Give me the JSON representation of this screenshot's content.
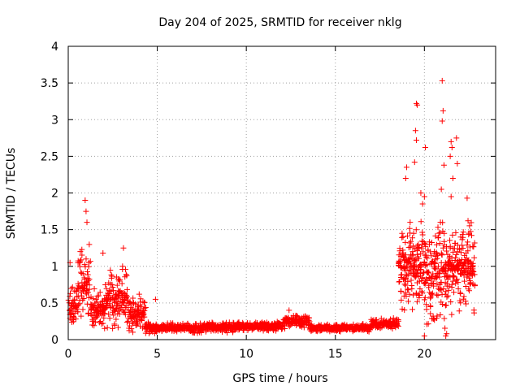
{
  "chart_data": {
    "type": "scatter",
    "title": "Day 204 of 2025, SRMTID for receiver nklg",
    "xlabel": "GPS time / hours",
    "ylabel": "SRMTID / TECUs",
    "xlim": [
      0,
      24
    ],
    "ylim": [
      0,
      4
    ],
    "grid": true,
    "xticks": [
      0,
      5,
      10,
      15,
      20
    ],
    "yticks": [
      0,
      0.5,
      1,
      1.5,
      2,
      2.5,
      3,
      3.5,
      4
    ],
    "marker": "+",
    "marker_color": "#ff0000",
    "series_envelope": [
      {
        "from": 0.0,
        "to": 0.5,
        "base": 0.45,
        "spread": 0.35,
        "density": 10
      },
      {
        "from": 0.5,
        "to": 1.2,
        "base": 0.75,
        "spread": 0.6,
        "density": 10
      },
      {
        "from": 1.2,
        "to": 2.0,
        "base": 0.4,
        "spread": 0.35,
        "density": 10
      },
      {
        "from": 2.0,
        "to": 3.3,
        "base": 0.55,
        "spread": 0.45,
        "density": 10
      },
      {
        "from": 3.3,
        "to": 4.3,
        "base": 0.35,
        "spread": 0.3,
        "density": 10
      },
      {
        "from": 4.3,
        "to": 7.5,
        "base": 0.16,
        "spread": 0.08,
        "density": 8
      },
      {
        "from": 7.5,
        "to": 9.5,
        "base": 0.17,
        "spread": 0.08,
        "density": 8
      },
      {
        "from": 9.5,
        "to": 12.0,
        "base": 0.18,
        "spread": 0.07,
        "density": 8
      },
      {
        "from": 12.0,
        "to": 13.5,
        "base": 0.24,
        "spread": 0.1,
        "density": 8
      },
      {
        "from": 13.5,
        "to": 17.0,
        "base": 0.16,
        "spread": 0.06,
        "density": 8
      },
      {
        "from": 17.0,
        "to": 18.5,
        "base": 0.22,
        "spread": 0.08,
        "density": 8
      },
      {
        "from": 18.5,
        "to": 20.0,
        "base": 1.0,
        "spread": 0.7,
        "density": 12
      },
      {
        "from": 20.0,
        "to": 21.2,
        "base": 0.9,
        "spread": 0.8,
        "density": 12
      },
      {
        "from": 21.2,
        "to": 22.8,
        "base": 1.0,
        "spread": 0.7,
        "density": 12
      }
    ],
    "highlights": [
      {
        "x": 0.1,
        "y": 1.05
      },
      {
        "x": 0.95,
        "y": 1.9
      },
      {
        "x": 1.0,
        "y": 1.75
      },
      {
        "x": 1.05,
        "y": 1.6
      },
      {
        "x": 1.95,
        "y": 1.18
      },
      {
        "x": 3.1,
        "y": 1.25
      },
      {
        "x": 3.05,
        "y": 1.0
      },
      {
        "x": 4.9,
        "y": 0.55
      },
      {
        "x": 12.4,
        "y": 0.4
      },
      {
        "x": 18.8,
        "y": 1.4
      },
      {
        "x": 19.0,
        "y": 2.35
      },
      {
        "x": 18.95,
        "y": 2.2
      },
      {
        "x": 19.2,
        "y": 1.6
      },
      {
        "x": 19.55,
        "y": 3.22
      },
      {
        "x": 19.6,
        "y": 3.2
      },
      {
        "x": 19.5,
        "y": 2.85
      },
      {
        "x": 19.55,
        "y": 2.72
      },
      {
        "x": 19.45,
        "y": 2.42
      },
      {
        "x": 19.8,
        "y": 2.0
      },
      {
        "x": 20.0,
        "y": 1.95
      },
      {
        "x": 19.9,
        "y": 1.85
      },
      {
        "x": 20.05,
        "y": 2.62
      },
      {
        "x": 21.0,
        "y": 3.53
      },
      {
        "x": 21.05,
        "y": 3.12
      },
      {
        "x": 21.0,
        "y": 2.98
      },
      {
        "x": 21.1,
        "y": 2.38
      },
      {
        "x": 20.95,
        "y": 2.05
      },
      {
        "x": 21.5,
        "y": 2.7
      },
      {
        "x": 21.55,
        "y": 2.62
      },
      {
        "x": 21.45,
        "y": 2.5
      },
      {
        "x": 21.8,
        "y": 2.75
      },
      {
        "x": 21.6,
        "y": 2.2
      },
      {
        "x": 21.5,
        "y": 1.95
      },
      {
        "x": 21.85,
        "y": 2.4
      },
      {
        "x": 22.4,
        "y": 1.93
      },
      {
        "x": 22.45,
        "y": 1.62
      },
      {
        "x": 22.5,
        "y": 1.45
      },
      {
        "x": 20.9,
        "y": 1.6
      },
      {
        "x": 21.2,
        "y": 0.05
      },
      {
        "x": 21.25,
        "y": 0.08
      },
      {
        "x": 20.0,
        "y": 0.05
      }
    ]
  }
}
